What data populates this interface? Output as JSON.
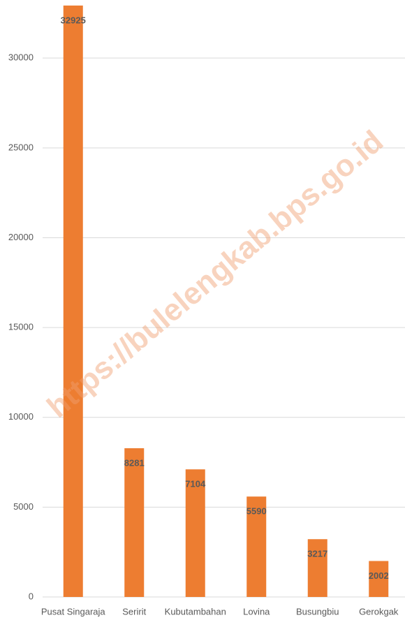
{
  "chart_data": {
    "type": "bar",
    "categories": [
      "Pusat Singaraja",
      "Seririt",
      "Kubutambahan",
      "Lovina",
      "Busungbiu",
      "Gerokgak"
    ],
    "values": [
      32925,
      8281,
      7104,
      5590,
      3217,
      2002
    ],
    "color": "#ed7d31",
    "ylim": [
      0,
      33000
    ],
    "yticks": [
      0,
      5000,
      10000,
      15000,
      20000,
      25000,
      30000
    ],
    "grid": true,
    "watermark": "https://bulelengkab.bps.go.id"
  }
}
